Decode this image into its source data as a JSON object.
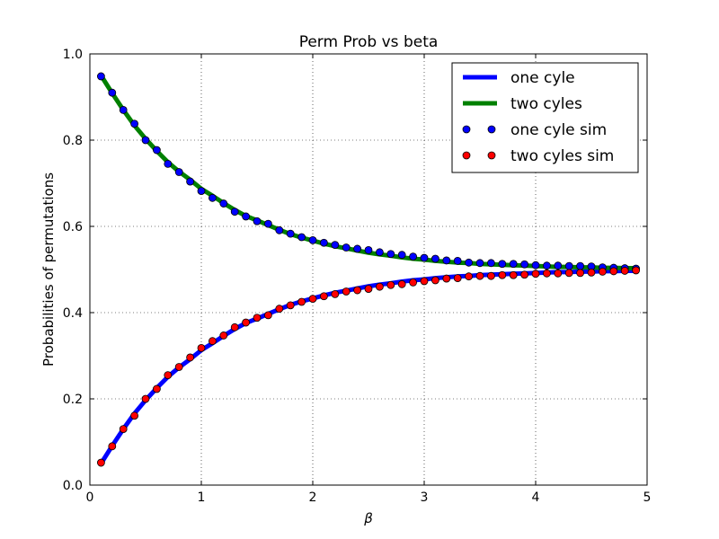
{
  "chart_data": {
    "type": "line",
    "title": "Perm Prob vs beta",
    "xlabel": "β",
    "ylabel": "Probabilities of permutations",
    "xlim": [
      0,
      5
    ],
    "ylim": [
      0.0,
      1.0
    ],
    "xticks": [
      "0",
      "1",
      "2",
      "3",
      "4",
      "5"
    ],
    "yticks": [
      "0.0",
      "0.2",
      "0.4",
      "0.6",
      "0.8",
      "1.0"
    ],
    "grid": true,
    "legend_position": "top-right",
    "x": [
      0.1,
      0.2,
      0.3,
      0.4,
      0.5,
      0.6,
      0.7,
      0.8,
      0.9,
      1.0,
      1.1,
      1.2,
      1.3,
      1.4,
      1.5,
      1.6,
      1.7,
      1.8,
      1.9,
      2.0,
      2.1,
      2.2,
      2.3,
      2.4,
      2.5,
      2.6,
      2.7,
      2.8,
      2.9,
      3.0,
      3.1,
      3.2,
      3.3,
      3.4,
      3.5,
      3.6,
      3.7,
      3.8,
      3.9,
      4.0,
      4.1,
      4.2,
      4.3,
      4.4,
      4.5,
      4.6,
      4.7,
      4.8,
      4.9
    ],
    "series": [
      {
        "name": "one cyle",
        "kind": "line",
        "color": "#0000ff",
        "values": [
          0.05,
          0.091,
          0.13,
          0.166,
          0.197,
          0.225,
          0.251,
          0.273,
          0.292,
          0.313,
          0.329,
          0.346,
          0.362,
          0.376,
          0.386,
          0.397,
          0.408,
          0.418,
          0.426,
          0.433,
          0.44,
          0.446,
          0.451,
          0.456,
          0.461,
          0.465,
          0.468,
          0.472,
          0.475,
          0.477,
          0.48,
          0.482,
          0.484,
          0.485,
          0.487,
          0.488,
          0.489,
          0.49,
          0.491,
          0.492,
          0.493,
          0.494,
          0.494,
          0.495,
          0.495,
          0.496,
          0.496,
          0.497,
          0.497
        ]
      },
      {
        "name": "two cyles",
        "kind": "line",
        "color": "#008000",
        "values": [
          0.95,
          0.909,
          0.87,
          0.834,
          0.803,
          0.775,
          0.749,
          0.727,
          0.708,
          0.687,
          0.671,
          0.654,
          0.638,
          0.624,
          0.614,
          0.603,
          0.592,
          0.582,
          0.574,
          0.567,
          0.56,
          0.554,
          0.549,
          0.544,
          0.539,
          0.535,
          0.532,
          0.528,
          0.525,
          0.523,
          0.52,
          0.518,
          0.516,
          0.515,
          0.513,
          0.512,
          0.511,
          0.51,
          0.509,
          0.508,
          0.507,
          0.506,
          0.506,
          0.505,
          0.505,
          0.504,
          0.504,
          0.503,
          0.503
        ]
      },
      {
        "name": "one cyle sim",
        "kind": "markers",
        "color": "#0000ff",
        "values": [
          0.948,
          0.91,
          0.87,
          0.838,
          0.8,
          0.777,
          0.745,
          0.726,
          0.704,
          0.682,
          0.666,
          0.653,
          0.634,
          0.623,
          0.612,
          0.606,
          0.591,
          0.583,
          0.575,
          0.568,
          0.562,
          0.557,
          0.551,
          0.548,
          0.545,
          0.54,
          0.536,
          0.534,
          0.53,
          0.527,
          0.525,
          0.521,
          0.52,
          0.516,
          0.515,
          0.515,
          0.513,
          0.513,
          0.512,
          0.51,
          0.509,
          0.509,
          0.508,
          0.508,
          0.507,
          0.505,
          0.504,
          0.503,
          0.502
        ]
      },
      {
        "name": "two cyles sim",
        "kind": "markers",
        "color": "#ff0000",
        "values": [
          0.052,
          0.09,
          0.13,
          0.161,
          0.2,
          0.223,
          0.255,
          0.274,
          0.296,
          0.318,
          0.334,
          0.347,
          0.366,
          0.377,
          0.388,
          0.394,
          0.409,
          0.417,
          0.425,
          0.432,
          0.438,
          0.443,
          0.449,
          0.452,
          0.455,
          0.46,
          0.464,
          0.466,
          0.47,
          0.473,
          0.475,
          0.479,
          0.48,
          0.484,
          0.485,
          0.485,
          0.487,
          0.487,
          0.488,
          0.49,
          0.491,
          0.491,
          0.492,
          0.492,
          0.493,
          0.495,
          0.496,
          0.497,
          0.498
        ]
      }
    ]
  }
}
